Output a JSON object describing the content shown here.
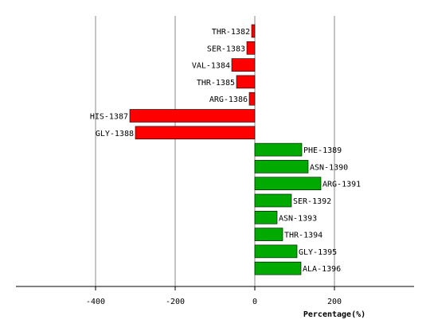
{
  "chart_data": {
    "type": "bar",
    "orientation": "horizontal",
    "xlabel": "Percentage(%)",
    "xlim": [
      -600,
      400
    ],
    "xticks": [
      -400,
      -200,
      0,
      200
    ],
    "grid": true,
    "colors": {
      "negative": "#ff0000",
      "positive": "#00aa00",
      "grid": "#888888",
      "axis": "#000000"
    },
    "categories": [
      "THR-1382",
      "SER-1383",
      "VAL-1384",
      "THR-1385",
      "ARG-1386",
      "HIS-1387",
      "GLY-1388",
      "PHE-1389",
      "ASN-1390",
      "ARG-1391",
      "SER-1392",
      "ASN-1393",
      "THR-1394",
      "GLY-1395",
      "ALA-1396"
    ],
    "values": [
      -8,
      -20,
      -58,
      -46,
      -14,
      -314,
      -300,
      118,
      134,
      166,
      92,
      56,
      70,
      106,
      116
    ]
  }
}
